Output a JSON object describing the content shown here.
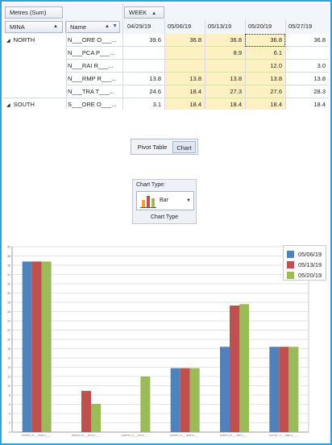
{
  "pivot": {
    "data_field": "Metres (Sum)",
    "column_field": "WEEK",
    "row_fields": [
      "MINA",
      "Name"
    ],
    "weeks": [
      "04/29/19",
      "05/06/19",
      "05/13/19",
      "05/20/19",
      "05/27/19"
    ],
    "groups": [
      {
        "name": "NORTH",
        "rows": [
          {
            "name": "N___ORE O___...",
            "values": [
              "39.6",
              "36.8",
              "36.8",
              "36.8",
              "36.8"
            ]
          },
          {
            "name": "N___PCA P___...",
            "values": [
              "",
              "",
              "8.9",
              "6.1",
              ""
            ]
          },
          {
            "name": "N___RAI R___...",
            "values": [
              "",
              "",
              "",
              "12.0",
              "3.0"
            ]
          },
          {
            "name": "N___RMP R___...",
            "values": [
              "13.8",
              "13.8",
              "13.8",
              "13.8",
              "13.8"
            ]
          },
          {
            "name": "N___TRA T___...",
            "values": [
              "24.6",
              "18.4",
              "27.3",
              "27.6",
              "28.3"
            ]
          }
        ]
      },
      {
        "name": "SOUTH",
        "rows": [
          {
            "name": "S___ORE O___...",
            "values": [
              "3.1",
              "18.4",
              "18.4",
              "18.4",
              "18.4"
            ]
          }
        ]
      }
    ]
  },
  "tabs": {
    "pivot_table": "Pivot Table",
    "chart": "Chart",
    "active": "chart"
  },
  "chart_type": {
    "label": "Chart Type:",
    "value": "Bar",
    "group_caption": "Chart Type"
  },
  "chart_data": {
    "type": "bar",
    "categories": [
      "NORTH | N___ORE O___...",
      "NORTH | N___PCA P___...",
      "NORTH | N___RAI R___...",
      "NORTH | N___RMP R___...",
      "NORTH | N___TRA T___...",
      "SOUTH | S___ORE O___..."
    ],
    "series": [
      {
        "name": "05/06/19",
        "color": "#4f81bd",
        "values": [
          36.8,
          0,
          0,
          13.8,
          18.4,
          18.4
        ]
      },
      {
        "name": "05/13/19",
        "color": "#c0504d",
        "values": [
          36.8,
          8.9,
          0,
          13.8,
          27.3,
          18.4
        ]
      },
      {
        "name": "05/20/19",
        "color": "#9bbb59",
        "values": [
          36.8,
          6.1,
          12.0,
          13.8,
          27.6,
          18.4
        ]
      }
    ],
    "ylim": [
      0,
      40
    ],
    "yticks": [
      0,
      2,
      4,
      6,
      8,
      10,
      12,
      14,
      16,
      18,
      20,
      22,
      24,
      26,
      28,
      30,
      32,
      34,
      36,
      38,
      40
    ],
    "grid": true,
    "legend": "top-right"
  }
}
